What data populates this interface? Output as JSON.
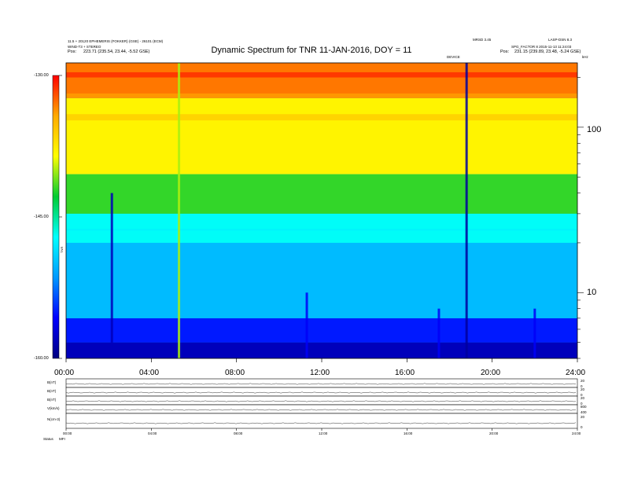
{
  "header": {
    "title": "Dynamic Spectrum for TNR 11-JAN-2016, DOY = 11",
    "left_line1": "11.5 + 20120 EPHEMERIS (FOKKER) (GSE) - 26101 (ECM)",
    "left_line2": "WIND-T3 + STEREO",
    "left_pos_label": "Pos:",
    "left_pos_value": "223.71 (235.54, 23.44, -5.52 GSE)",
    "right_line1": "MRSD 3.45",
    "right_line2": "LASP-DSN 8.3",
    "right_line3": "SPG_FACTOR 8 2015-11-13 11:24:03",
    "right_pos_label": "Pos:",
    "right_pos_value": "231.15 (239.89, 23.48, -5.24 GSE)",
    "small_center": "DEVICE",
    "small_right": "kHz"
  },
  "colorbar": {
    "ticks": [
      "-130.00",
      "-145.00",
      "-160.00"
    ],
    "label": "TNR",
    "colors": [
      "#ff0000",
      "#ffaa00",
      "#ffff00",
      "#00cc33",
      "#00ffff",
      "#0099ff",
      "#0000ff",
      "#000080"
    ]
  },
  "chart_data": {
    "type": "heatmap",
    "title": "Dynamic Spectrum for TNR 11-JAN-2016, DOY = 11",
    "x_ticks": [
      "00:00",
      "04:00",
      "08:00",
      "12:00",
      "16:00",
      "20:00",
      "24:00"
    ],
    "x_range_hours": [
      0,
      24
    ],
    "y_label": "kHz",
    "y_scale": "log",
    "y_ticks": [
      100,
      10
    ],
    "y_range": [
      4,
      245
    ],
    "z_range": [
      -160,
      -130
    ],
    "z_ticks": [
      -130,
      -145,
      -160
    ],
    "spectrum_bands": [
      {
        "f_lo": 4,
        "f_hi": 5,
        "value": -158
      },
      {
        "f_lo": 5,
        "f_hi": 7,
        "value": -155
      },
      {
        "f_lo": 7,
        "f_hi": 20,
        "value": -150
      },
      {
        "f_lo": 20,
        "f_hi": 30,
        "value": -147
      },
      {
        "f_lo": 30,
        "f_hi": 52,
        "value": -142
      },
      {
        "f_lo": 52,
        "f_hi": 150,
        "value": -138
      },
      {
        "f_lo": 150,
        "f_hi": 245,
        "value": -133
      }
    ],
    "bursts": [
      {
        "t": 2.15,
        "f_top": 40,
        "value": -158
      },
      {
        "t": 5.3,
        "f_top": 245,
        "value": -140
      },
      {
        "t": 11.3,
        "f_top": 10,
        "value": -156
      },
      {
        "t": 17.5,
        "f_top": 8,
        "value": -156
      },
      {
        "t": 18.8,
        "f_top": 245,
        "value": -159
      },
      {
        "t": 22.0,
        "f_top": 8,
        "value": -156
      }
    ],
    "plasma_line": {
      "f": 24,
      "value": -148
    }
  },
  "panels": {
    "labels": [
      "B(nT)",
      "B(nT)",
      "B(nT)",
      "V(km/s)",
      "N(cm-3)"
    ],
    "right_ticks": [
      [
        "20",
        "0"
      ],
      [
        "20",
        "0"
      ],
      [
        "20",
        "0"
      ],
      [
        "800",
        "400"
      ],
      [
        "20",
        "0"
      ]
    ],
    "x_ticks": [
      "00:00",
      "04:00",
      "08:00",
      "12:00",
      "16:00",
      "20:00",
      "24:00"
    ],
    "footer_label": "Status",
    "footer_value": "MFI"
  }
}
